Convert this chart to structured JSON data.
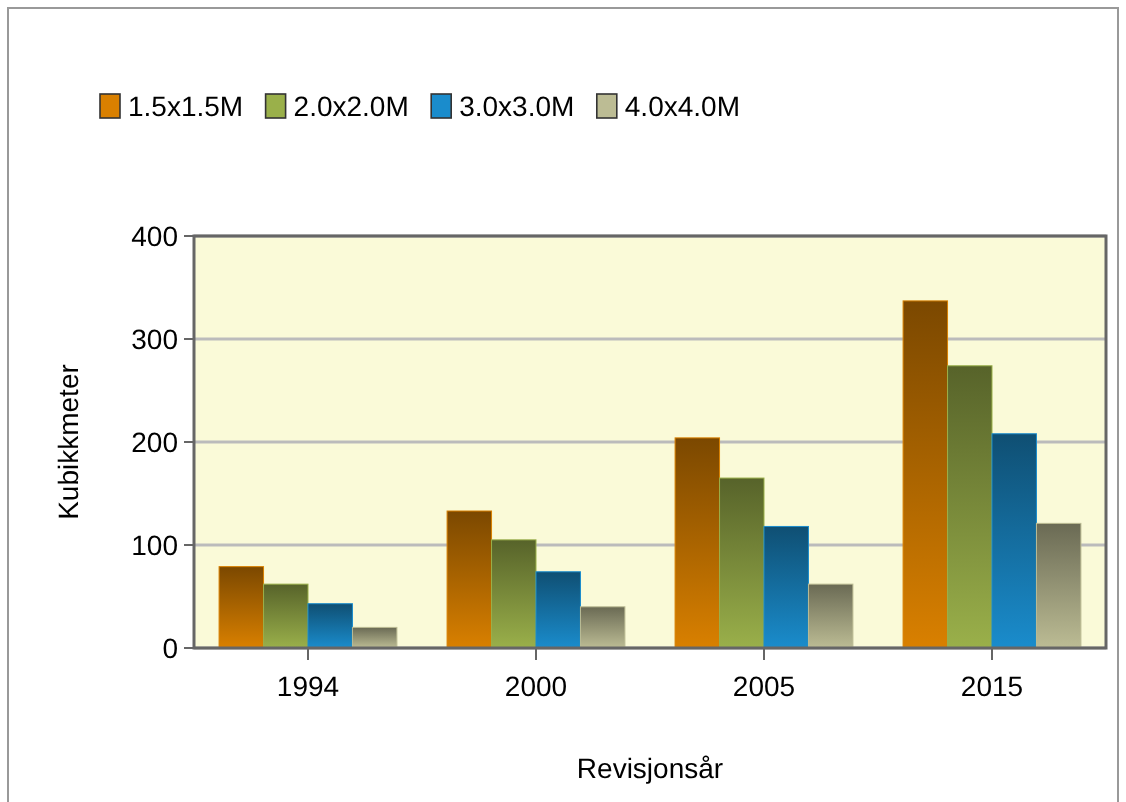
{
  "chart_data": {
    "type": "bar",
    "xlabel": "Revisjonsår",
    "ylabel": "Kubikkmeter",
    "categories": [
      "1994",
      "2000",
      "2005",
      "2015"
    ],
    "series": [
      {
        "name": "1.5x1.5M",
        "color": "#d98000",
        "values": [
          79,
          133,
          204,
          337
        ]
      },
      {
        "name": "2.0x2.0M",
        "color": "#9ab04a",
        "values": [
          62,
          105,
          165,
          274
        ]
      },
      {
        "name": "3.0x3.0M",
        "color": "#1a8ccc",
        "values": [
          43,
          74,
          118,
          208
        ]
      },
      {
        "name": "4.0x4.0M",
        "color": "#bcbc94",
        "values": [
          20,
          40,
          62,
          121
        ]
      }
    ],
    "ylim": [
      0,
      400
    ],
    "yticks": [
      0,
      100,
      200,
      300,
      400
    ],
    "grid": "y",
    "legend": "top"
  }
}
